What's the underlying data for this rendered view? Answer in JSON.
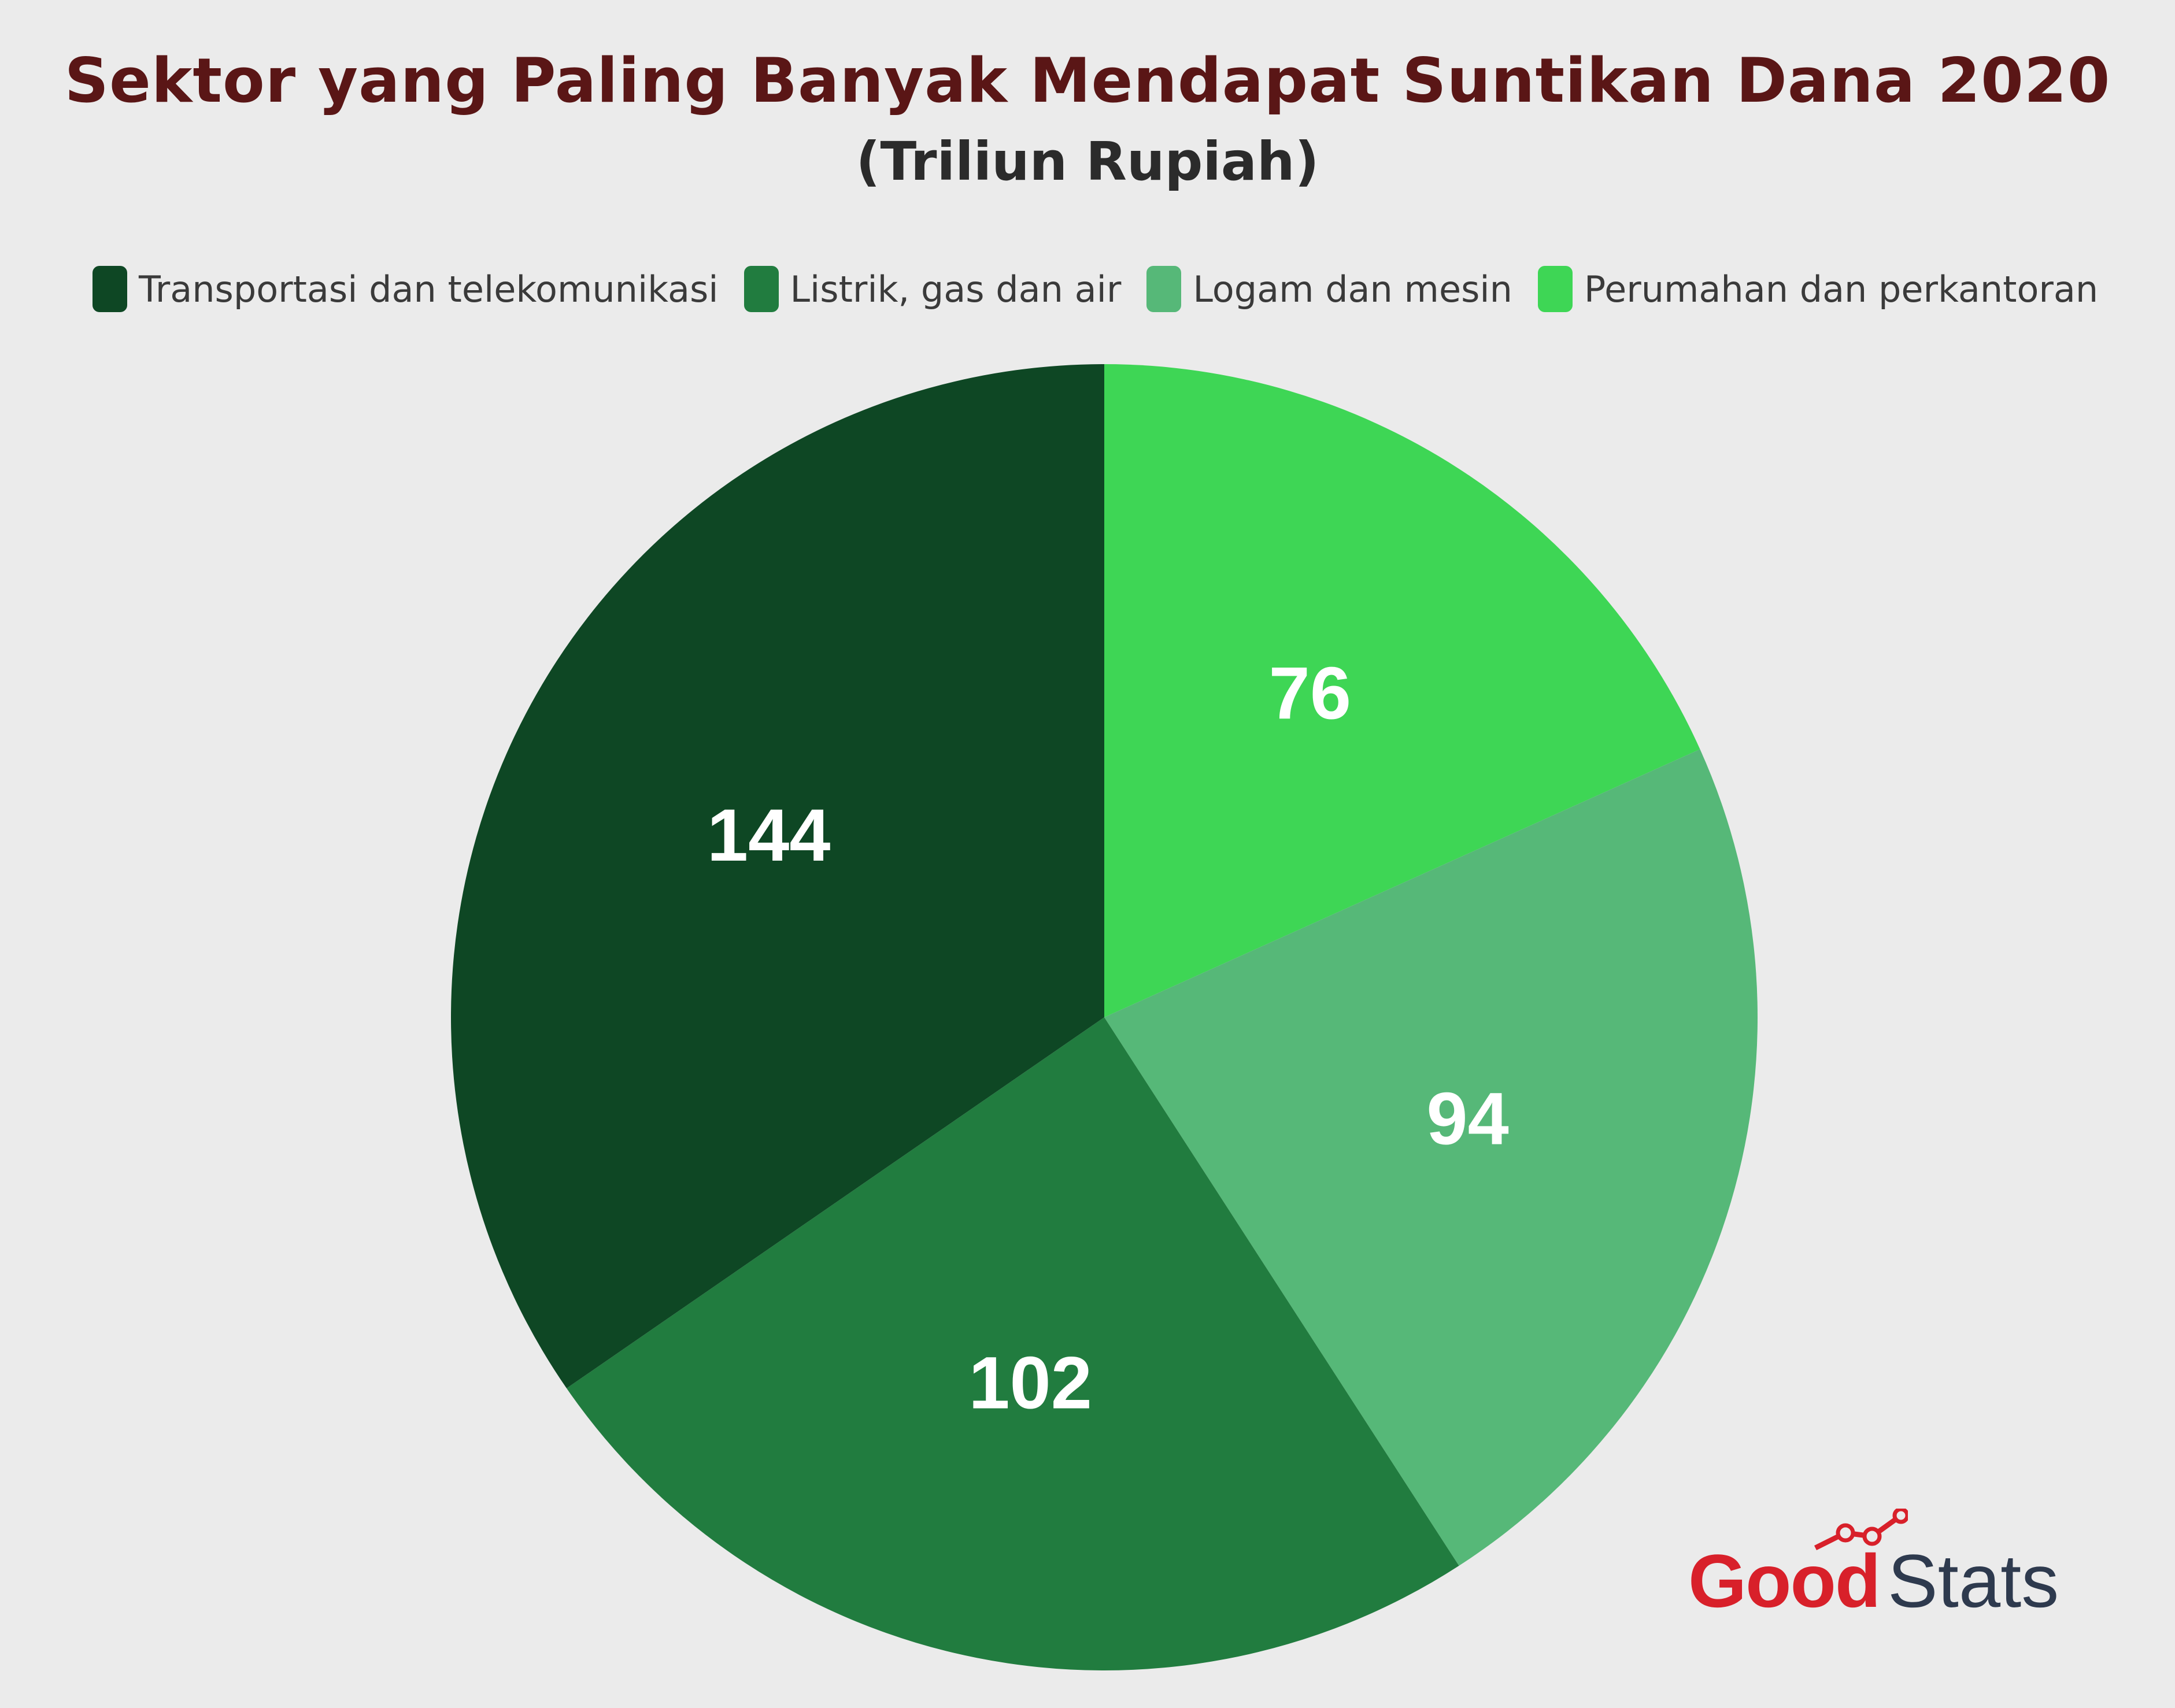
{
  "chart_data": {
    "type": "pie",
    "title": "Sektor yang Paling Banyak Mendapat Suntikan Dana 2020",
    "subtitle": "(Triliun Rupiah)",
    "categories": [
      "Perumahan dan perkantoran",
      "Logam dan mesin",
      "Listrik, gas dan air",
      "Transportasi dan telekomunikasi"
    ],
    "values": [
      76,
      94,
      102,
      144
    ],
    "colors": [
      "#3ed655",
      "#56b878",
      "#217c3f",
      "#0e4724"
    ],
    "legend": [
      {
        "label": "Transportasi dan telekomunikasi",
        "color": "#0e4724"
      },
      {
        "label": "Listrik, gas dan air",
        "color": "#217c3f"
      },
      {
        "label": "Logam dan mesin",
        "color": "#56b878"
      },
      {
        "label": "Perumahan dan perkantoran",
        "color": "#3ed655"
      }
    ],
    "legend_position": "top",
    "start": "12 o'clock, clockwise"
  },
  "brand": {
    "good": "Good",
    "stats": "Stats",
    "color": "#d8202a"
  },
  "page": {
    "background": "#ebebeb"
  }
}
